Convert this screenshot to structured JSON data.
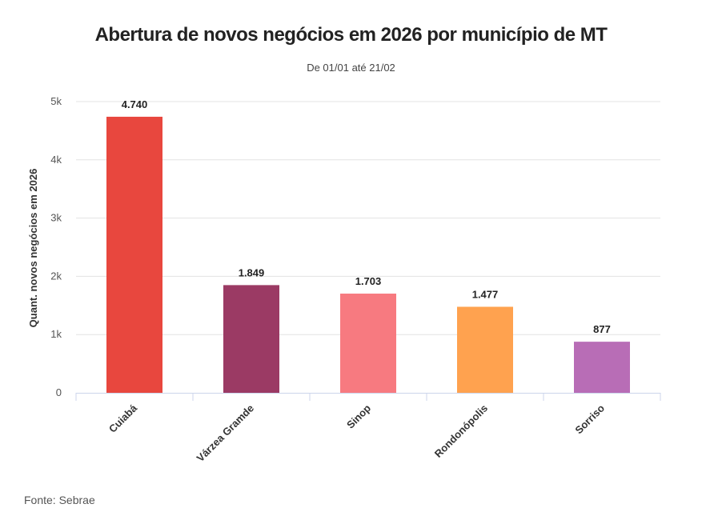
{
  "title": "Abertura de novos negócios em 2026 por município de MT",
  "subtitle": "De 01/01 até 21/02",
  "source": "Fonte: Sebrae",
  "chart_data": {
    "type": "bar",
    "title": "Abertura de novos negócios em 2026 por município de MT",
    "subtitle": "De 01/01 até 21/02",
    "xlabel": "",
    "ylabel": "Quant. novos negócios em 2026",
    "categories": [
      "Cuiabá",
      "Várzea Gramde",
      "Sinop",
      "Rondonópolis",
      "Sorriso"
    ],
    "values": [
      4740,
      1849,
      1703,
      1477,
      877
    ],
    "data_labels": [
      "4.740",
      "1.849",
      "1.703",
      "1.477",
      "877"
    ],
    "colors": [
      "#e8473e",
      "#9b3a64",
      "#f77a80",
      "#ffa24f",
      "#b86db6"
    ],
    "ylim": [
      0,
      5000
    ],
    "yticks": [
      0,
      1000,
      2000,
      3000,
      4000,
      5000
    ],
    "ytick_labels": [
      "0",
      "1k",
      "2k",
      "3k",
      "4k",
      "5k"
    ],
    "grid": true,
    "legend": "none"
  }
}
